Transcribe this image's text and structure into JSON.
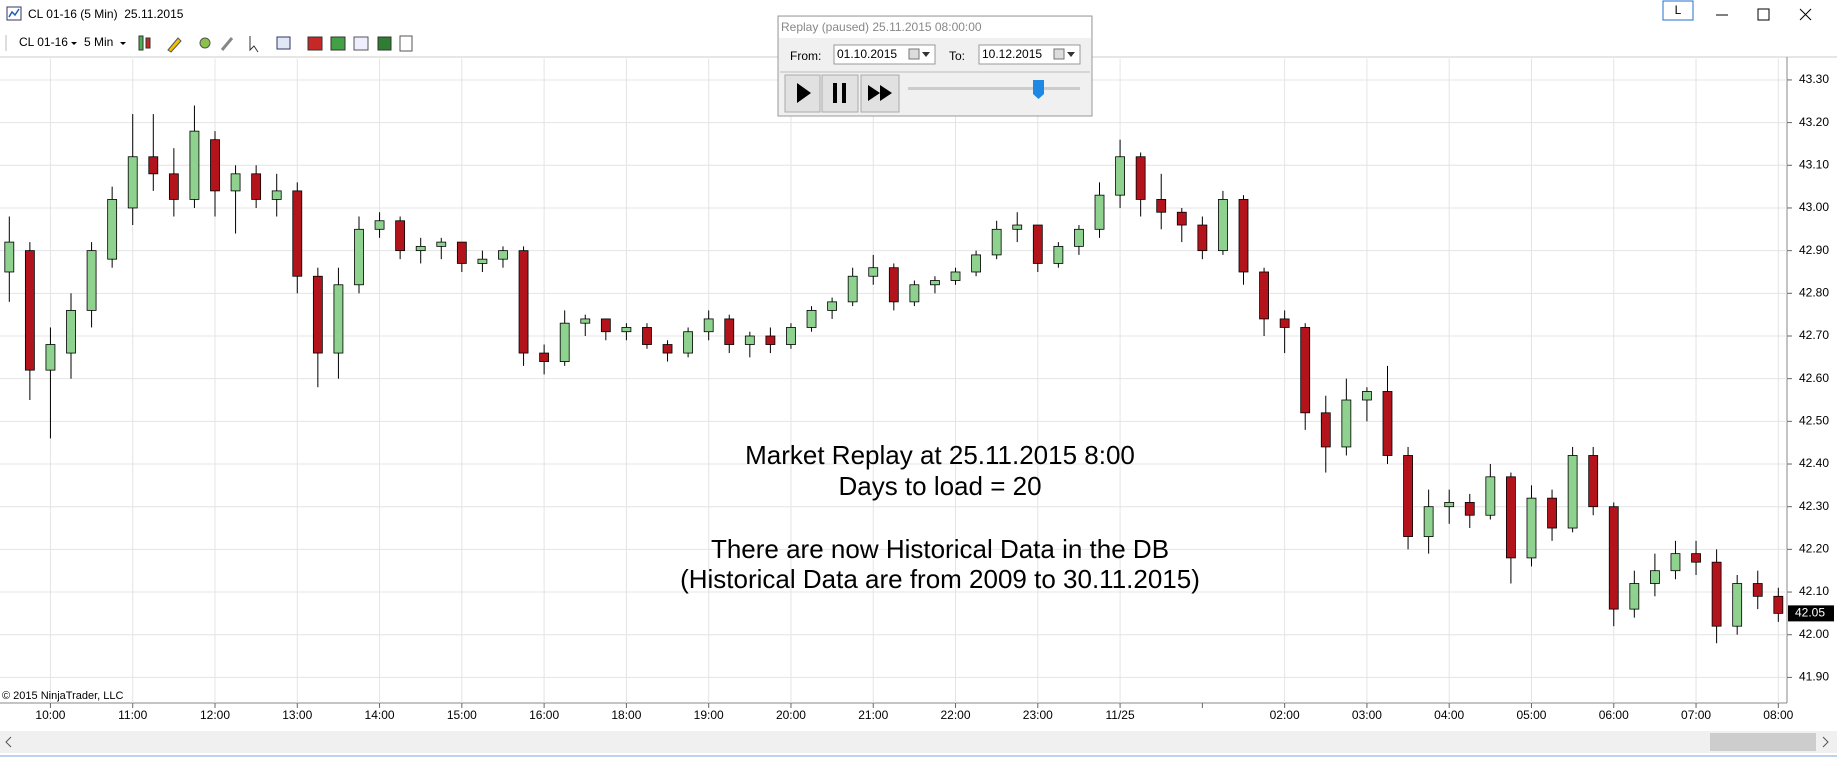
{
  "window": {
    "title": "CL 01-16 (5 Min)  25.11.2015",
    "layout_button": "L"
  },
  "toolbar": {
    "instrument": "CL 01-16",
    "interval": "5 Min"
  },
  "replay": {
    "title": "Replay (paused) 25.11.2015 08:00:00",
    "from_label": "From:",
    "from": "01.10.2015",
    "to_label": "To:",
    "to": "10.12.2015"
  },
  "chart_data": {
    "type": "candlestick",
    "annotations": [
      "Market Replay at 25.11.2015 8:00",
      "Days to load = 20",
      "There are now Historical Data in the DB",
      "(Historical Data are from 2009 to 30.11.2015)"
    ],
    "watermark": "© 2015 NinjaTrader, LLC",
    "up_color": "#8fd18f",
    "down_color": "#b3141c",
    "grid": true,
    "last_price": 42.05,
    "ylim": [
      41.84,
      43.35
    ],
    "yticks": [
      {
        "value": 41.9,
        "label": "41.90"
      },
      {
        "value": 42.0,
        "label": "42.00"
      },
      {
        "value": 42.1,
        "label": "42.10"
      },
      {
        "value": 42.2,
        "label": "42.20"
      },
      {
        "value": 42.3,
        "label": "42.30"
      },
      {
        "value": 42.4,
        "label": "42.40"
      },
      {
        "value": 42.5,
        "label": "42.50"
      },
      {
        "value": 42.6,
        "label": "42.60"
      },
      {
        "value": 42.7,
        "label": "42.70"
      },
      {
        "value": 42.8,
        "label": "42.80"
      },
      {
        "value": 42.9,
        "label": "42.90"
      },
      {
        "value": 43.0,
        "label": "43.00"
      },
      {
        "value": 43.1,
        "label": "43.10"
      },
      {
        "value": 43.2,
        "label": "43.20"
      },
      {
        "value": 43.3,
        "label": "43.30"
      }
    ],
    "categories": [
      null,
      null,
      "10:00",
      null,
      null,
      null,
      "11:00",
      null,
      null,
      null,
      "12:00",
      null,
      null,
      null,
      "13:00",
      null,
      null,
      null,
      "14:00",
      null,
      null,
      null,
      "15:00",
      null,
      null,
      null,
      "16:00",
      null,
      null,
      null,
      "18:00",
      null,
      null,
      null,
      "19:00",
      null,
      null,
      null,
      "20:00",
      null,
      null,
      null,
      "21:00",
      null,
      null,
      null,
      "22:00",
      null,
      null,
      null,
      "23:00",
      null,
      null,
      null,
      "11/25",
      null,
      null,
      null,
      null,
      null,
      null,
      null,
      "02:00",
      null,
      null,
      null,
      "03:00",
      null,
      null,
      null,
      "04:00",
      null,
      null,
      null,
      "05:00",
      null,
      null,
      null,
      "06:00",
      null,
      null,
      null,
      "07:00",
      null,
      null,
      null,
      "08:00"
    ],
    "ohlc": [
      [
        42.85,
        42.98,
        42.78,
        42.92
      ],
      [
        42.9,
        42.92,
        42.55,
        42.62
      ],
      [
        42.62,
        42.72,
        42.46,
        42.68
      ],
      [
        42.66,
        42.8,
        42.6,
        42.76
      ],
      [
        42.76,
        42.92,
        42.72,
        42.9
      ],
      [
        42.88,
        43.05,
        42.86,
        43.02
      ],
      [
        43.0,
        43.22,
        42.96,
        43.12
      ],
      [
        43.12,
        43.22,
        43.04,
        43.08
      ],
      [
        43.08,
        43.14,
        42.98,
        43.02
      ],
      [
        43.02,
        43.24,
        43.0,
        43.18
      ],
      [
        43.16,
        43.18,
        42.98,
        43.04
      ],
      [
        43.04,
        43.1,
        42.94,
        43.08
      ],
      [
        43.08,
        43.1,
        43.0,
        43.02
      ],
      [
        43.02,
        43.08,
        42.98,
        43.04
      ],
      [
        43.04,
        43.06,
        42.8,
        42.84
      ],
      [
        42.84,
        42.86,
        42.58,
        42.66
      ],
      [
        42.66,
        42.86,
        42.6,
        42.82
      ],
      [
        42.82,
        42.98,
        42.8,
        42.95
      ],
      [
        42.95,
        42.99,
        42.93,
        42.97
      ],
      [
        42.97,
        42.98,
        42.88,
        42.9
      ],
      [
        42.9,
        42.93,
        42.87,
        42.91
      ],
      [
        42.91,
        42.93,
        42.88,
        42.92
      ],
      [
        42.92,
        42.92,
        42.85,
        42.87
      ],
      [
        42.87,
        42.9,
        42.85,
        42.88
      ],
      [
        42.88,
        42.91,
        42.86,
        42.9
      ],
      [
        42.9,
        42.91,
        42.63,
        42.66
      ],
      [
        42.66,
        42.68,
        42.61,
        42.64
      ],
      [
        42.64,
        42.76,
        42.63,
        42.73
      ],
      [
        42.73,
        42.75,
        42.7,
        42.74
      ],
      [
        42.74,
        42.74,
        42.69,
        42.71
      ],
      [
        42.71,
        42.73,
        42.69,
        42.72
      ],
      [
        42.72,
        42.73,
        42.67,
        42.68
      ],
      [
        42.68,
        42.69,
        42.64,
        42.66
      ],
      [
        42.66,
        42.72,
        42.65,
        42.71
      ],
      [
        42.71,
        42.76,
        42.69,
        42.74
      ],
      [
        42.74,
        42.75,
        42.66,
        42.68
      ],
      [
        42.68,
        42.71,
        42.65,
        42.7
      ],
      [
        42.7,
        42.72,
        42.66,
        42.68
      ],
      [
        42.68,
        42.73,
        42.67,
        42.72
      ],
      [
        42.72,
        42.77,
        42.71,
        42.76
      ],
      [
        42.76,
        42.79,
        42.74,
        42.78
      ],
      [
        42.78,
        42.86,
        42.77,
        42.84
      ],
      [
        42.84,
        42.89,
        42.82,
        42.86
      ],
      [
        42.86,
        42.87,
        42.76,
        42.78
      ],
      [
        42.78,
        42.83,
        42.77,
        42.82
      ],
      [
        42.82,
        42.84,
        42.8,
        42.83
      ],
      [
        42.83,
        42.86,
        42.82,
        42.85
      ],
      [
        42.85,
        42.9,
        42.84,
        42.89
      ],
      [
        42.89,
        42.97,
        42.88,
        42.95
      ],
      [
        42.95,
        42.99,
        42.92,
        42.96
      ],
      [
        42.96,
        42.96,
        42.85,
        42.87
      ],
      [
        42.87,
        42.92,
        42.86,
        42.91
      ],
      [
        42.91,
        42.96,
        42.89,
        42.95
      ],
      [
        42.95,
        43.06,
        42.93,
        43.03
      ],
      [
        43.03,
        43.16,
        43.0,
        43.12
      ],
      [
        43.12,
        43.13,
        42.98,
        43.02
      ],
      [
        43.02,
        43.08,
        42.95,
        42.99
      ],
      [
        42.99,
        43.0,
        42.92,
        42.96
      ],
      [
        42.96,
        42.98,
        42.88,
        42.9
      ],
      [
        42.9,
        43.04,
        42.89,
        43.02
      ],
      [
        43.02,
        43.03,
        42.82,
        42.85
      ],
      [
        42.85,
        42.86,
        42.7,
        42.74
      ],
      [
        42.74,
        42.76,
        42.66,
        42.72
      ],
      [
        42.72,
        42.73,
        42.48,
        42.52
      ],
      [
        42.52,
        42.56,
        42.38,
        42.44
      ],
      [
        42.44,
        42.6,
        42.42,
        42.55
      ],
      [
        42.55,
        42.58,
        42.5,
        42.57
      ],
      [
        42.57,
        42.63,
        42.4,
        42.42
      ],
      [
        42.42,
        42.44,
        42.2,
        42.23
      ],
      [
        42.23,
        42.34,
        42.19,
        42.3
      ],
      [
        42.3,
        42.34,
        42.26,
        42.31
      ],
      [
        42.31,
        42.33,
        42.25,
        42.28
      ],
      [
        42.28,
        42.4,
        42.27,
        42.37
      ],
      [
        42.37,
        42.38,
        42.12,
        42.18
      ],
      [
        42.18,
        42.35,
        42.16,
        42.32
      ],
      [
        42.32,
        42.34,
        42.22,
        42.25
      ],
      [
        42.25,
        42.44,
        42.24,
        42.42
      ],
      [
        42.42,
        42.44,
        42.28,
        42.3
      ],
      [
        42.3,
        42.31,
        42.02,
        42.06
      ],
      [
        42.06,
        42.15,
        42.04,
        42.12
      ],
      [
        42.12,
        42.19,
        42.09,
        42.15
      ],
      [
        42.15,
        42.22,
        42.13,
        42.19
      ],
      [
        42.19,
        42.22,
        42.14,
        42.17
      ],
      [
        42.17,
        42.2,
        41.98,
        42.02
      ],
      [
        42.02,
        42.14,
        42.0,
        42.12
      ],
      [
        42.12,
        42.15,
        42.06,
        42.09
      ],
      [
        42.09,
        42.11,
        42.03,
        42.05
      ]
    ]
  }
}
